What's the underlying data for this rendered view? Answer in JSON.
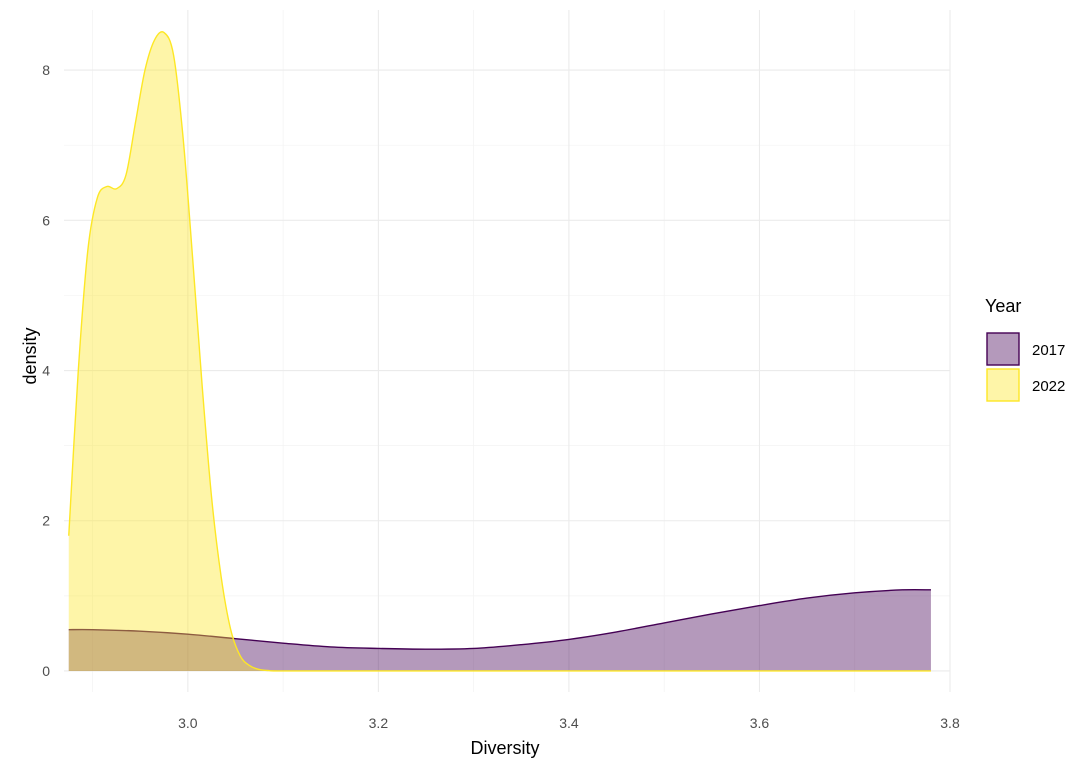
{
  "chart_data": {
    "type": "area",
    "title": "",
    "xlabel": "Diversity",
    "ylabel": "density",
    "xlim": [
      2.87,
      3.8
    ],
    "ylim": [
      0,
      8.5
    ],
    "x_ticks": [
      "3.0",
      "3.2",
      "3.4",
      "3.6",
      "3.8"
    ],
    "y_ticks": [
      "0",
      "2",
      "4",
      "6",
      "8"
    ],
    "grid": true,
    "legend": {
      "title": "Year",
      "position": "right"
    },
    "series": [
      {
        "name": "2017",
        "fill": "#440154",
        "stroke": "#440154",
        "x": [
          2.875,
          2.9,
          2.95,
          3.0,
          3.05,
          3.1,
          3.15,
          3.2,
          3.25,
          3.3,
          3.35,
          3.4,
          3.45,
          3.5,
          3.55,
          3.6,
          3.65,
          3.7,
          3.75,
          3.78
        ],
        "y": [
          0.55,
          0.55,
          0.53,
          0.49,
          0.43,
          0.37,
          0.32,
          0.3,
          0.29,
          0.3,
          0.35,
          0.42,
          0.52,
          0.64,
          0.76,
          0.87,
          0.97,
          1.04,
          1.08,
          1.08
        ]
      },
      {
        "name": "2022",
        "fill": "#FDE725",
        "stroke": "#FDE725",
        "x": [
          2.875,
          2.885,
          2.895,
          2.905,
          2.915,
          2.925,
          2.935,
          2.945,
          2.955,
          2.965,
          2.975,
          2.985,
          2.995,
          3.005,
          3.015,
          3.025,
          3.035,
          3.045,
          3.055,
          3.065,
          3.075,
          3.085,
          3.1,
          3.2,
          3.4,
          3.6,
          3.78
        ],
        "y": [
          1.8,
          4.0,
          5.6,
          6.3,
          6.45,
          6.42,
          6.6,
          7.3,
          8.0,
          8.4,
          8.5,
          8.2,
          7.1,
          5.5,
          3.8,
          2.3,
          1.25,
          0.55,
          0.2,
          0.07,
          0.02,
          0.005,
          0.0,
          0.0,
          0.0,
          0.0,
          0.0
        ]
      }
    ]
  }
}
